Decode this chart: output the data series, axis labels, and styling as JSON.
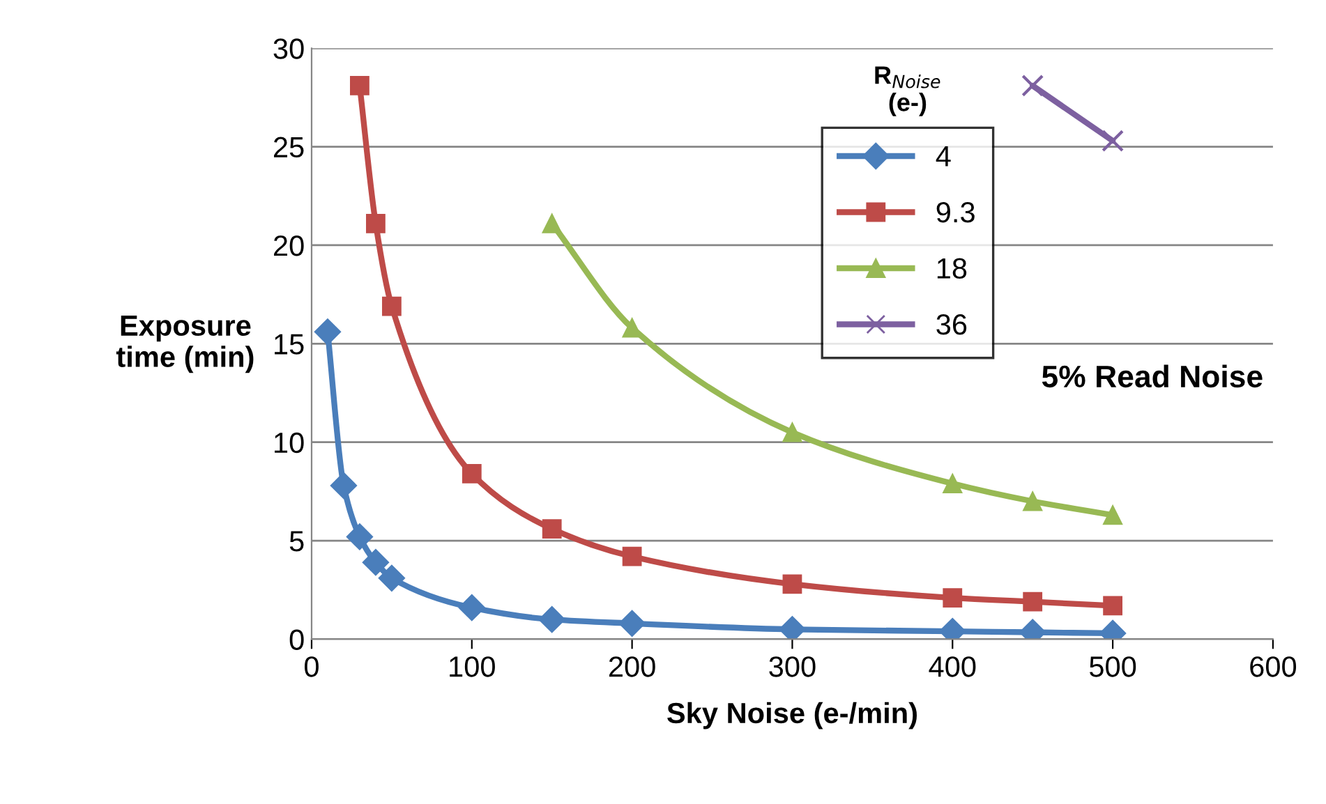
{
  "chart_data": {
    "type": "line",
    "xlabel": "Sky Noise (e-/min)",
    "ylabel": "Exposure\ntime (min)",
    "legend_title": "R$_{Noise}$\n(e-)",
    "series": [
      {
        "name": "4",
        "color": "#4a7ebb",
        "marker": "diamond",
        "x": [
          10,
          20,
          30,
          40,
          50,
          100,
          150,
          200,
          300,
          400,
          450,
          500
        ],
        "values": [
          15.6,
          7.8,
          5.2,
          3.9,
          3.1,
          1.6,
          1.0,
          0.8,
          0.5,
          0.4,
          0.35,
          0.3
        ]
      },
      {
        "name": "9.3",
        "color": "#be4b48",
        "marker": "square",
        "x": [
          30,
          40,
          50,
          100,
          150,
          200,
          300,
          400,
          450,
          500
        ],
        "values": [
          28.1,
          21.1,
          16.9,
          8.4,
          5.6,
          4.2,
          2.8,
          2.1,
          1.9,
          1.7
        ]
      },
      {
        "name": "18",
        "color": "#98b954",
        "marker": "triangle",
        "x": [
          150,
          200,
          300,
          400,
          450,
          500
        ],
        "values": [
          21.1,
          15.8,
          10.5,
          7.9,
          7.0,
          6.3
        ]
      },
      {
        "name": "36",
        "color": "#7d60a0",
        "marker": "cross",
        "x": [
          450,
          500
        ],
        "values": [
          28.1,
          25.3
        ]
      }
    ],
    "xlim": [
      0,
      600
    ],
    "xticks": [
      0,
      100,
      200,
      300,
      400,
      500,
      600
    ],
    "ylim": [
      0,
      30
    ],
    "yticks": [
      0,
      5,
      10,
      15,
      20,
      25,
      30
    ],
    "grid": "y",
    "legend": "top",
    "line_style": "solid",
    "annotations": [
      "5% Read Noise"
    ]
  }
}
